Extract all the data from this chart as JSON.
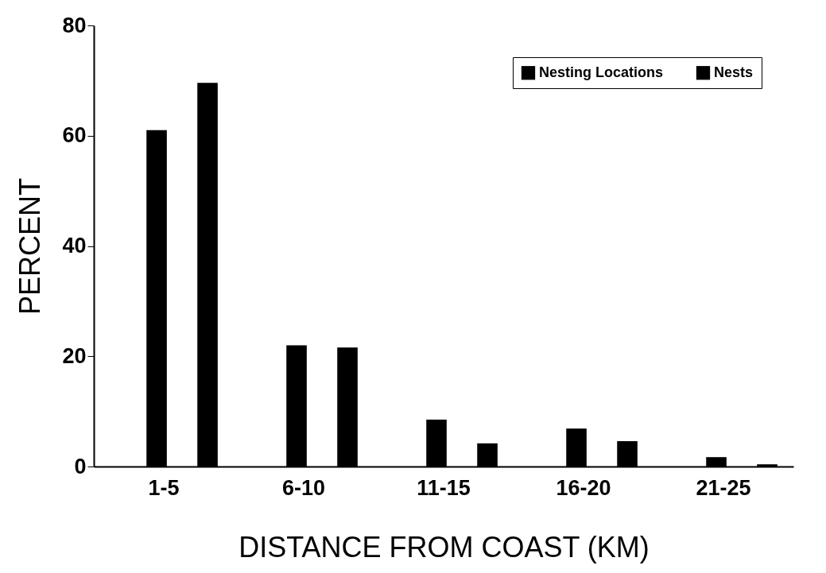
{
  "chart_data": {
    "type": "bar",
    "xlabel": "DISTANCE FROM COAST (KM)",
    "ylabel": "PERCENT",
    "categories": [
      "1-5",
      "6-10",
      "11-15",
      "16-20",
      "21-25"
    ],
    "series": [
      {
        "name": "Nesting Locations",
        "color": "#000000",
        "values": [
          61,
          22,
          8.5,
          6.9,
          1.7
        ]
      },
      {
        "name": "Nests",
        "color": "#000000",
        "values": [
          69.6,
          21.6,
          4.2,
          4.6,
          0.4
        ]
      }
    ],
    "ylim": [
      0,
      80
    ],
    "yticks": [
      0,
      20,
      40,
      60,
      80
    ],
    "grid": false,
    "legend": "top right"
  }
}
